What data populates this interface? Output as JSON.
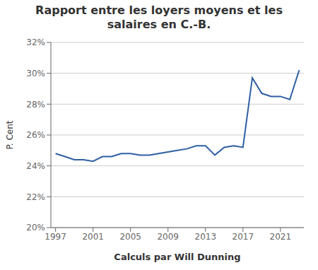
{
  "chart_data": {
    "type": "line",
    "title": "Rapport entre les loyers moyens et les\nsalaires en C.-B.",
    "xlabel": "Calculs par Will Dunning",
    "ylabel": "P. Cent",
    "x": [
      1997,
      1998,
      1999,
      2000,
      2001,
      2002,
      2003,
      2004,
      2005,
      2006,
      2007,
      2008,
      2009,
      2010,
      2011,
      2012,
      2013,
      2014,
      2015,
      2016,
      2017,
      2018,
      2019,
      2020,
      2021,
      2022,
      2023
    ],
    "values": [
      0.248,
      0.246,
      0.244,
      0.244,
      0.243,
      0.246,
      0.246,
      0.248,
      0.248,
      0.247,
      0.247,
      0.248,
      0.249,
      0.25,
      0.251,
      0.253,
      0.253,
      0.247,
      0.252,
      0.253,
      0.252,
      0.297,
      0.287,
      0.285,
      0.285,
      0.283,
      0.302
    ],
    "color": "#2E5FA3",
    "xlim": [
      1996.5,
      2023.5
    ],
    "xticks": [
      1997,
      2001,
      2005,
      2009,
      2013,
      2017,
      2021
    ],
    "ylim": [
      0.2,
      0.32
    ],
    "yticks": [
      {
        "value": 0.2,
        "label": "20%"
      },
      {
        "value": 0.22,
        "label": "22%"
      },
      {
        "value": 0.24,
        "label": "24%"
      },
      {
        "value": 0.26,
        "label": "26%"
      },
      {
        "value": 0.28,
        "label": "28%"
      },
      {
        "value": 0.3,
        "label": "30%"
      },
      {
        "value": 0.32,
        "label": "32%"
      }
    ],
    "grid": true
  }
}
